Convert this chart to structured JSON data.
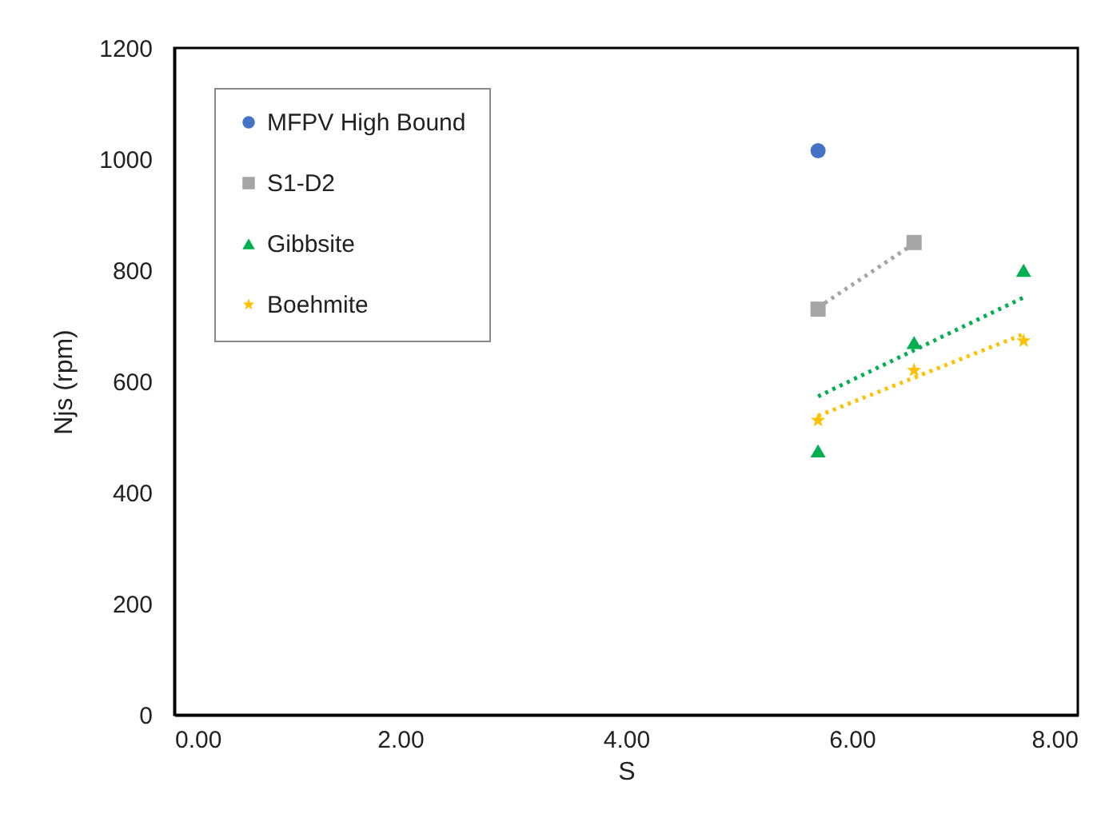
{
  "chart_data": {
    "type": "scatter",
    "xlabel": "S",
    "ylabel": "Njs (rpm)",
    "xlim": [
      0,
      8
    ],
    "xticks": [
      {
        "value": 0,
        "label": "0.00"
      },
      {
        "value": 2,
        "label": "2.00"
      },
      {
        "value": 4,
        "label": "4.00"
      },
      {
        "value": 6,
        "label": "6.00"
      },
      {
        "value": 8,
        "label": "8.00"
      }
    ],
    "ylim": [
      0,
      1200
    ],
    "yticks": [
      0,
      200,
      400,
      600,
      800,
      1000,
      1200
    ],
    "grid": false,
    "legend": "top left",
    "series": [
      {
        "name": "MFPV High Bound",
        "color": "#4472c4",
        "marker": "circle",
        "x": [
          5.7
        ],
        "values": [
          1015
        ]
      },
      {
        "name": "S1-D2",
        "color": "#a5a5a5",
        "marker": "square",
        "x": [
          5.7,
          6.55
        ],
        "values": [
          730,
          850
        ]
      },
      {
        "name": "Gibbsite",
        "color": "#00b050",
        "marker": "triangle",
        "x": [
          5.7,
          6.55,
          7.52
        ],
        "values": [
          475,
          670,
          800
        ]
      },
      {
        "name": "Boehmite",
        "color": "#ffc000",
        "marker": "star",
        "x": [
          5.7,
          6.55,
          7.52
        ],
        "values": [
          530,
          620,
          673
        ]
      },
      {
        "type": "line",
        "color": "#a5a5a5",
        "line_style": "dotted",
        "x": [
          5.7,
          6.55
        ],
        "values": [
          733,
          848
        ]
      },
      {
        "type": "line",
        "color": "#00b050",
        "line_style": "dotted",
        "x": [
          5.7,
          7.52
        ],
        "values": [
          573,
          751
        ]
      },
      {
        "type": "line",
        "color": "#ffc000",
        "line_style": "dotted",
        "x": [
          5.7,
          7.52
        ],
        "values": [
          538,
          685
        ]
      }
    ]
  }
}
